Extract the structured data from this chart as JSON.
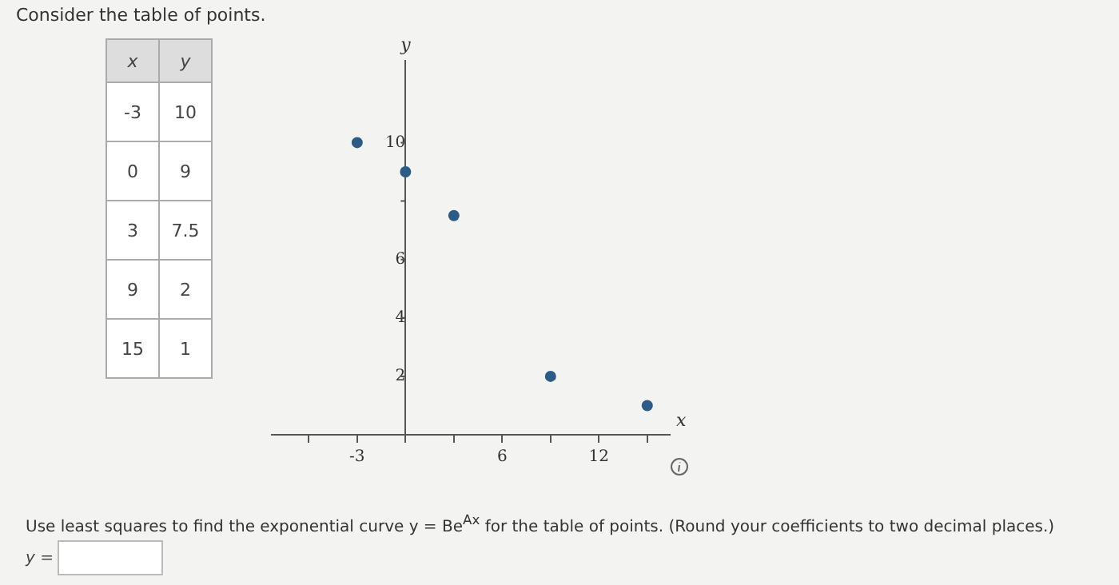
{
  "chart_data": [
    {
      "type": "other",
      "title": "Consider the table of points.",
      "annotations": [
        "x",
        "y",
        "-3",
        "10",
        "0",
        "9",
        "3",
        "7.5",
        "9",
        "2",
        "15",
        "1"
      ]
    },
    {
      "type": "scatter",
      "xlabel": "x",
      "ylabel": "y",
      "x": [
        -3,
        0,
        3,
        9,
        15
      ],
      "values": [
        10,
        9,
        7.5,
        2,
        1
      ],
      "color": "#2b5b86",
      "marker": "circle",
      "grid": false,
      "legend": false,
      "xlim": [
        -8.3,
        16.4
      ],
      "ylim": [
        0,
        12.8
      ],
      "xticks": [
        {
          "value": -6,
          "label": null
        },
        -3,
        {
          "value": 0,
          "label": null
        },
        {
          "value": 3,
          "label": null
        },
        6,
        {
          "value": 9,
          "label": null
        },
        12,
        {
          "value": 15,
          "label": null
        }
      ],
      "yticks": [
        2,
        4,
        6,
        {
          "value": 8,
          "label": null
        },
        10
      ],
      "annotations": [
        "Use least squares to find the exponential curve y = Be$^{Ax}$ for the table of points. (Round your coefficients to two decimal places.)",
        "y ="
      ]
    }
  ]
}
